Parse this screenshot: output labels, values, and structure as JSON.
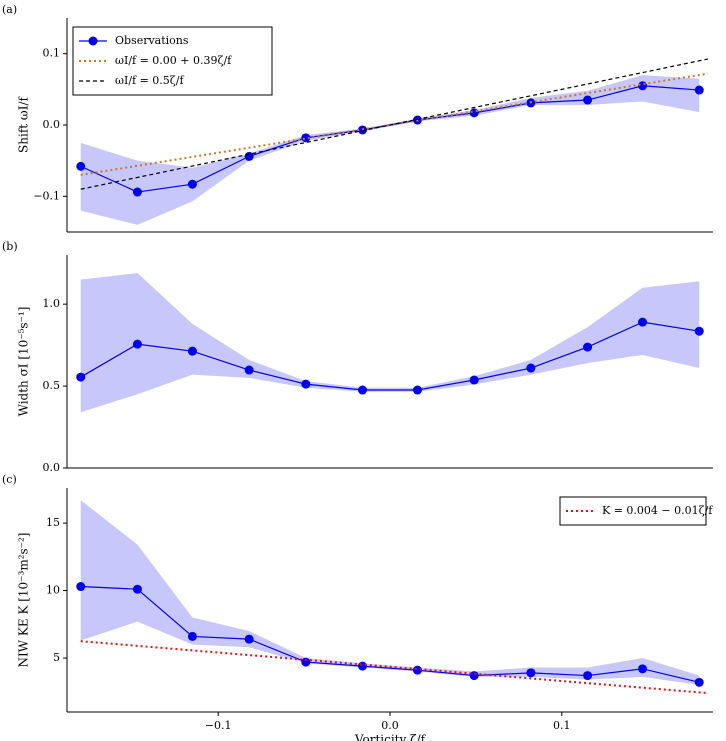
{
  "chart_data": [
    {
      "type": "line",
      "panel_label": "(a)",
      "y_label": "Shift ωI/f",
      "legend": "upper left",
      "x": [
        -0.18,
        -0.147,
        -0.115,
        -0.082,
        -0.049,
        -0.016,
        0.016,
        0.049,
        0.082,
        0.115,
        0.147,
        0.18
      ],
      "xlim": [
        -0.188,
        0.188
      ],
      "ylim": [
        -0.15,
        0.15
      ],
      "yticks": [
        {
          "value": -0.1,
          "label": "−0.1"
        },
        {
          "value": 0,
          "label": "0.0"
        },
        0.1
      ],
      "series": [
        {
          "name": "Observations",
          "color": "#0000ee",
          "style": "marker",
          "values": [
            -0.058,
            -0.094,
            -0.083,
            -0.044,
            -0.018,
            -0.007,
            0.007,
            0.017,
            0.031,
            0.035,
            0.055,
            0.049
          ],
          "band_upper": [
            -0.025,
            -0.05,
            -0.06,
            -0.04,
            -0.014,
            -0.005,
            0.009,
            0.021,
            0.038,
            0.048,
            0.07,
            0.065
          ],
          "band_lower": [
            -0.12,
            -0.14,
            -0.107,
            -0.05,
            -0.022,
            -0.009,
            0.005,
            0.013,
            0.028,
            0.028,
            0.033,
            0.018
          ]
        },
        {
          "name": "ωI/f = 0.00 + 0.39ζ/f",
          "color": "#cc7722",
          "style": "dotted",
          "x": [
            -0.18,
            0.185
          ],
          "values": [
            -0.07,
            0.072
          ]
        },
        {
          "name": "ωI/f = 0.5ζ/f",
          "color": "#000000",
          "style": "dashed",
          "x": [
            -0.18,
            0.185
          ],
          "values": [
            -0.09,
            0.0925
          ]
        }
      ]
    },
    {
      "type": "line",
      "panel_label": "(b)",
      "y_label": "Width σI [10⁻⁵s⁻¹]",
      "x": [
        -0.18,
        -0.147,
        -0.115,
        -0.082,
        -0.049,
        -0.016,
        0.016,
        0.049,
        0.082,
        0.115,
        0.147,
        0.18
      ],
      "xlim": [
        -0.188,
        0.188
      ],
      "ylim": [
        0,
        1.3
      ],
      "yticks": [
        {
          "value": 0,
          "label": "0.0"
        },
        0.5,
        {
          "value": 1,
          "label": "1.0"
        }
      ],
      "series": [
        {
          "color": "#0000ee",
          "style": "marker",
          "values": [
            0.555,
            0.756,
            0.713,
            0.598,
            0.512,
            0.476,
            0.476,
            0.537,
            0.61,
            0.738,
            0.89,
            0.835
          ],
          "band_upper": [
            1.15,
            1.19,
            0.88,
            0.66,
            0.53,
            0.49,
            0.49,
            0.56,
            0.66,
            0.86,
            1.1,
            1.14
          ],
          "band_lower": [
            0.34,
            0.45,
            0.57,
            0.55,
            0.49,
            0.465,
            0.465,
            0.51,
            0.57,
            0.64,
            0.69,
            0.61
          ]
        }
      ]
    },
    {
      "type": "line",
      "panel_label": "(c)",
      "y_label": "NIW KE K [10⁻³m²s⁻²]",
      "x_label": "Vorticity ζ/f",
      "legend": "upper right",
      "x": [
        -0.18,
        -0.147,
        -0.115,
        -0.082,
        -0.049,
        -0.016,
        0.016,
        0.049,
        0.082,
        0.115,
        0.147,
        0.18
      ],
      "xlim": [
        -0.188,
        0.188
      ],
      "ylim": [
        1,
        17.6
      ],
      "xticks": [
        {
          "value": -0.1,
          "label": "−0.1"
        },
        {
          "value": 0,
          "label": "0.0"
        },
        0.1
      ],
      "yticks": [
        5,
        10,
        15
      ],
      "series": [
        {
          "color": "#0000ee",
          "style": "marker",
          "values": [
            10.3,
            10.1,
            6.6,
            6.4,
            4.7,
            4.4,
            4.1,
            3.7,
            3.9,
            3.7,
            4.2,
            3.2
          ],
          "band_upper": [
            16.7,
            13.4,
            8.0,
            7.0,
            5.0,
            4.6,
            4.3,
            4.0,
            4.3,
            4.3,
            5.0,
            3.7
          ],
          "band_lower": [
            6.3,
            7.7,
            6.0,
            5.8,
            4.6,
            4.3,
            4.0,
            3.6,
            3.6,
            3.4,
            3.6,
            3.0
          ]
        },
        {
          "name": "K = 0.004 − 0.01ζ/f",
          "color": "#dd1111",
          "style": "dotted",
          "x": [
            -0.18,
            0.185
          ],
          "values": [
            6.25,
            2.4
          ]
        }
      ]
    }
  ]
}
